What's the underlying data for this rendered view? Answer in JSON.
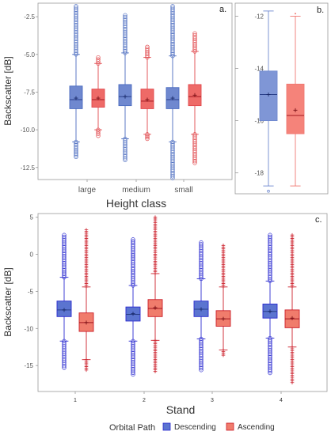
{
  "colors": {
    "descending": "#4a6bbf",
    "descending_fill": "#6f88cf",
    "ascending": "#e0464a",
    "ascending_fill": "#ee6a67",
    "c_descending": "#2b2bd0",
    "c_descending_fill": "#5b74d0",
    "c_ascending": "#cc1f2a",
    "c_ascending_fill": "#f07c6c"
  },
  "chart_data": [
    {
      "panel": "a.",
      "type": "box",
      "ylabel": "Backscatter [dB]",
      "xlabel": "Height class",
      "ylim": [
        -13.3,
        -1.6
      ],
      "yticks": [
        -2.5,
        -5.0,
        -7.5,
        -10.0,
        -12.5
      ],
      "ytick_labels": [
        "-2.5",
        "-5.0",
        "-7.5",
        "-10.0",
        "-12.5"
      ],
      "categories": [
        "large",
        "medium",
        "small"
      ],
      "series": [
        {
          "name": "Descending",
          "boxes": [
            {
              "q1": -8.6,
              "median": -8.0,
              "q3": -7.1,
              "mean": -7.9,
              "whislo": -10.8,
              "whishi": -5.0,
              "outlier_min": -11.8,
              "outlier_max": -1.8
            },
            {
              "q1": -8.4,
              "median": -7.8,
              "q3": -7.0,
              "mean": -7.8,
              "whislo": -10.6,
              "whishi": -4.9,
              "outlier_min": -12.0,
              "outlier_max": -2.4
            },
            {
              "q1": -8.6,
              "median": -8.0,
              "q3": -7.2,
              "mean": -7.9,
              "whislo": -10.8,
              "whishi": -5.1,
              "outlier_min": -13.2,
              "outlier_max": -1.8
            }
          ]
        },
        {
          "name": "Ascending",
          "boxes": [
            {
              "q1": -8.5,
              "median": -8.0,
              "q3": -7.3,
              "mean": -7.9,
              "whislo": -10.0,
              "whishi": -5.6,
              "outlier_min": -10.4,
              "outlier_max": -5.2
            },
            {
              "q1": -8.6,
              "median": -8.1,
              "q3": -7.3,
              "mean": -8.0,
              "whislo": -10.3,
              "whishi": -5.2,
              "outlier_min": -10.6,
              "outlier_max": -4.5
            },
            {
              "q1": -8.4,
              "median": -7.8,
              "q3": -7.0,
              "mean": -7.7,
              "whislo": -10.3,
              "whishi": -4.8,
              "outlier_min": -12.2,
              "outlier_max": -3.6
            }
          ]
        }
      ]
    },
    {
      "panel": "b.",
      "type": "box",
      "ylim": [
        -18.8,
        -11.5
      ],
      "yticks": [
        -12,
        -14,
        -16,
        -18
      ],
      "ytick_labels": [
        "-12",
        "-14",
        "-16",
        "-18"
      ],
      "series": [
        {
          "name": "Descending",
          "boxes": [
            {
              "q1": -16.0,
              "median": -15.0,
              "q3": -14.1,
              "mean": -15.0,
              "whislo": -18.5,
              "whishi": -11.8,
              "outlier_min": -18.7
            }
          ]
        },
        {
          "name": "Ascending",
          "boxes": [
            {
              "q1": -16.5,
              "median": -15.8,
              "q3": -14.6,
              "mean": -15.6,
              "whislo": -18.5,
              "whishi": -12.0,
              "outlier_max": -11.9
            }
          ]
        }
      ]
    },
    {
      "panel": "c.",
      "type": "box",
      "ylabel": "Backscatter [dB]",
      "xlabel": "Stand",
      "ylim": [
        -18.5,
        5.5
      ],
      "yticks": [
        5,
        0,
        -5,
        -10,
        -15
      ],
      "ytick_labels": [
        "5",
        "0",
        "-5",
        "-10",
        "-15"
      ],
      "categories": [
        "1",
        "2",
        "3",
        "4"
      ],
      "series": [
        {
          "name": "Descending",
          "boxes": [
            {
              "q1": -8.4,
              "median": -7.5,
              "q3": -6.3,
              "mean": -7.5,
              "whislo": -11.7,
              "whishi": -3.1,
              "outlier_min": -15.3,
              "outlier_max": 2.6
            },
            {
              "q1": -9.0,
              "median": -8.1,
              "q3": -7.1,
              "mean": -8.0,
              "whislo": -11.7,
              "whishi": -4.2,
              "outlier_min": -16.2,
              "outlier_max": 2.0
            },
            {
              "q1": -8.4,
              "median": -7.4,
              "q3": -6.3,
              "mean": -7.4,
              "whislo": -11.4,
              "whishi": -3.3,
              "outlier_min": -15.6,
              "outlier_max": 1.6
            },
            {
              "q1": -8.6,
              "median": -7.7,
              "q3": -6.7,
              "mean": -7.7,
              "whislo": -11.3,
              "whishi": -3.6,
              "outlier_min": -16.0,
              "outlier_max": 2.6
            }
          ]
        },
        {
          "name": "Ascending",
          "boxes": [
            {
              "q1": -10.4,
              "median": -9.2,
              "q3": -7.9,
              "mean": -9.2,
              "whislo": -14.2,
              "whishi": -4.4,
              "outlier_min": -15.6,
              "outlier_max": 3.3
            },
            {
              "q1": -8.4,
              "median": -7.3,
              "q3": -6.1,
              "mean": -7.2,
              "whislo": -11.6,
              "whishi": -2.6,
              "outlier_min": -15.8,
              "outlier_max": 5.0
            },
            {
              "q1": -9.7,
              "median": -8.7,
              "q3": -7.6,
              "mean": -8.7,
              "whislo": -12.9,
              "whishi": -4.4,
              "outlier_min": -13.6,
              "outlier_max": 1.2
            },
            {
              "q1": -9.9,
              "median": -8.7,
              "q3": -7.5,
              "mean": -8.6,
              "whislo": -12.5,
              "whishi": -4.4,
              "outlier_min": -17.3,
              "outlier_max": 2.6
            }
          ]
        }
      ]
    }
  ],
  "legend": {
    "title": "Orbital Path",
    "placement": "bottom",
    "items": [
      {
        "label": "Descending",
        "color_key": "c_descending_fill",
        "edge_key": "c_descending"
      },
      {
        "label": "Ascending",
        "color_key": "c_ascending_fill",
        "edge_key": "c_ascending"
      }
    ]
  }
}
